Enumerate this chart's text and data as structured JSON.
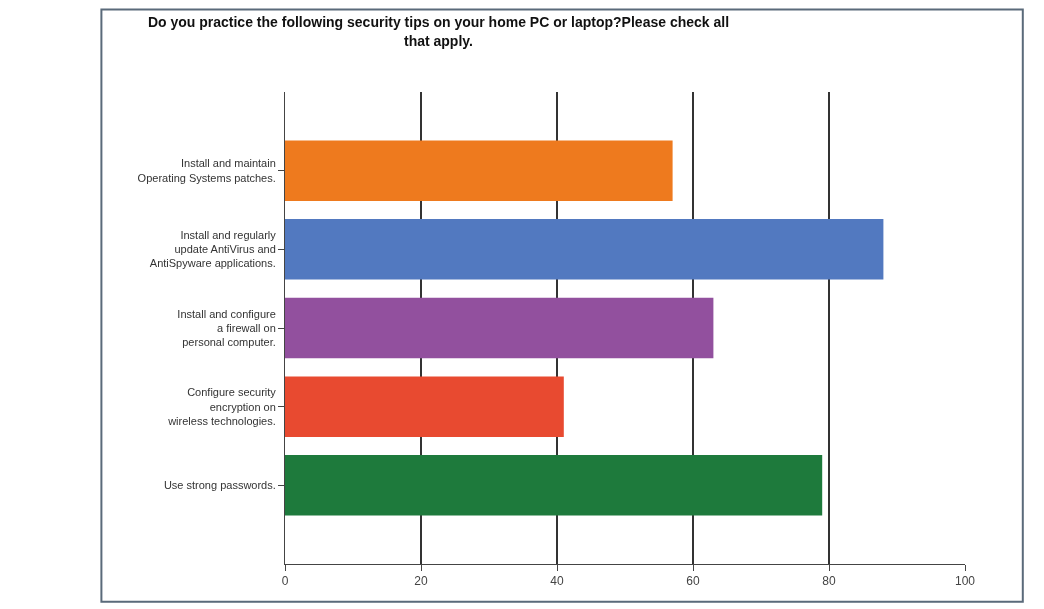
{
  "chart_data": {
    "type": "bar",
    "orientation": "horizontal",
    "title": "Do you practice the following security tips on your home PC or laptop?Please check all\nthat apply.",
    "categories": [
      "Install and maintain\nOperating Systems patches.",
      "Install and regularly\nupdate AntiVirus and\nAntiSpyware applications.",
      "Install and configure\na firewall on\npersonal computer.",
      "Configure security\nencryption on\nwireless technologies.",
      "Use strong passwords."
    ],
    "values": [
      57,
      88,
      63,
      41,
      79
    ],
    "colors": [
      "#ee7a1e",
      "#5279c0",
      "#92509e",
      "#e84a30",
      "#1e7a3c"
    ],
    "xlim": [
      0,
      100
    ],
    "xticks": [
      0,
      20,
      40,
      60,
      80,
      100
    ],
    "grid": "x"
  }
}
